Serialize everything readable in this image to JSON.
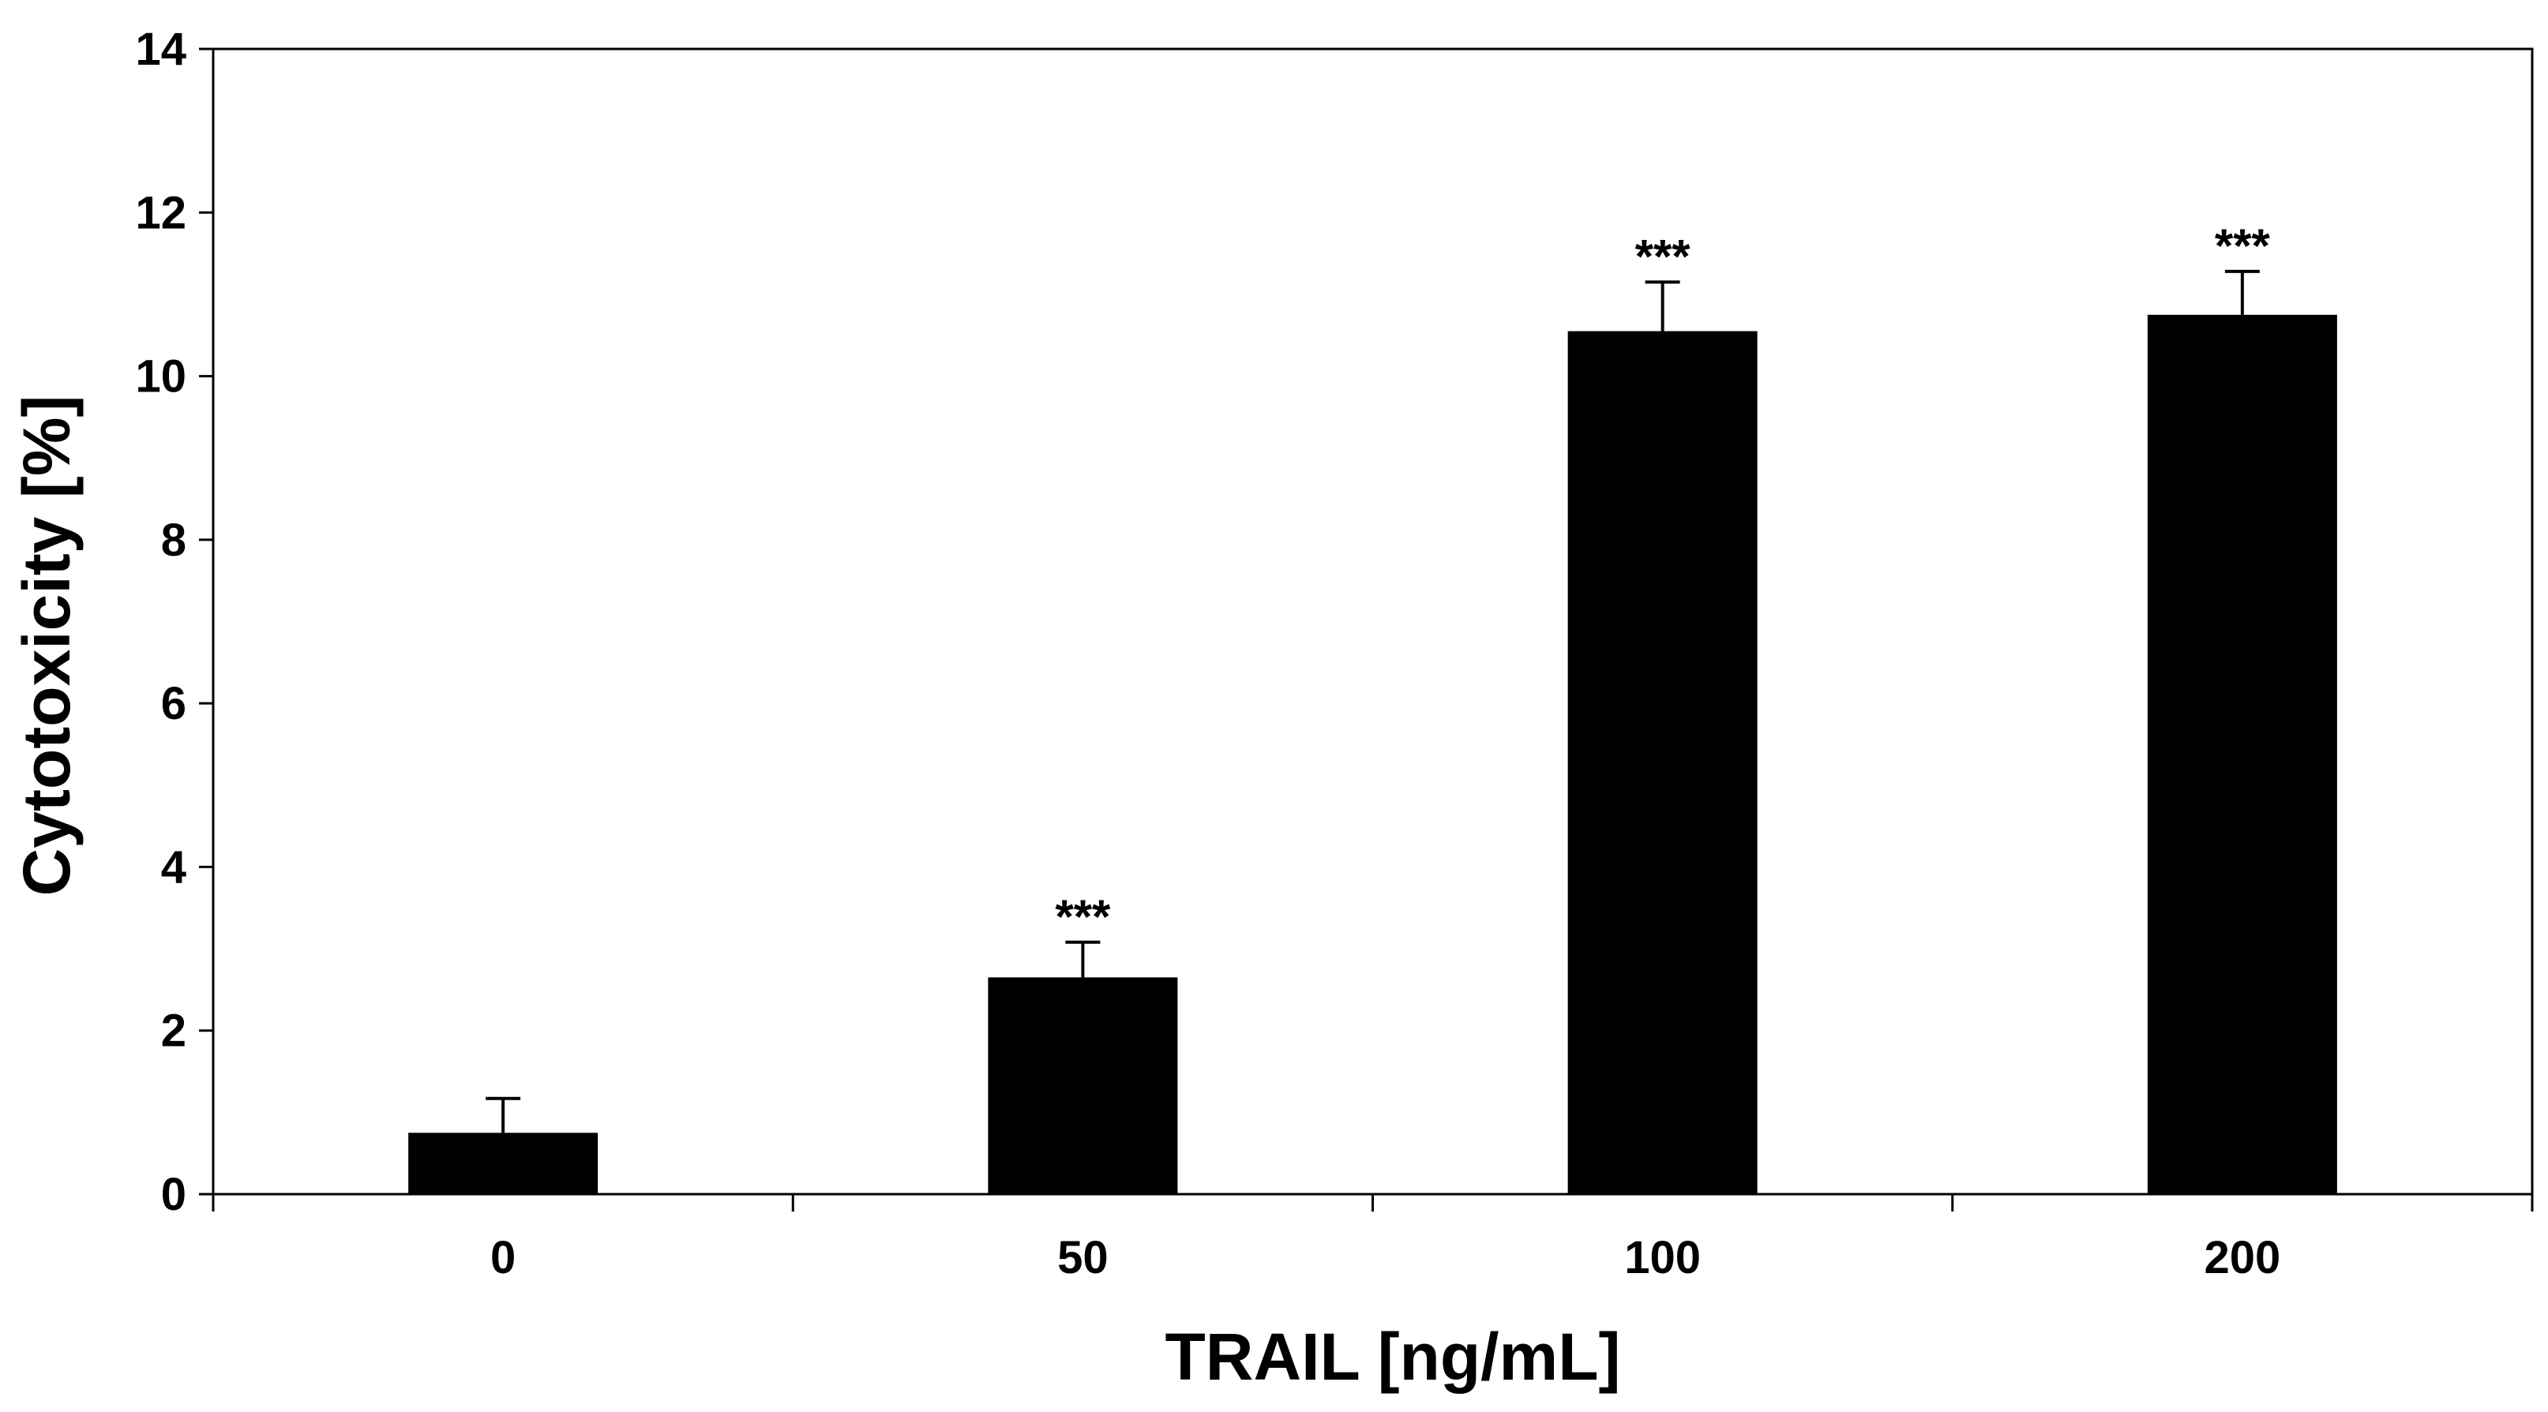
{
  "chart_data": {
    "type": "bar",
    "categories": [
      "0",
      "50",
      "100",
      "200"
    ],
    "values": [
      0.75,
      2.65,
      10.55,
      10.75
    ],
    "error_upper": [
      1.17,
      3.08,
      11.15,
      11.28
    ],
    "annotations": [
      "",
      "***",
      "***",
      "***"
    ],
    "xlabel": "TRAIL [ng/mL]",
    "ylabel": "Cytotoxicity [%]",
    "ylim": [
      0,
      14
    ],
    "yticks": [
      "0",
      "2",
      "4",
      "6",
      "8",
      "10",
      "12",
      "14"
    ],
    "grid": false,
    "bar_color": "#000000"
  }
}
